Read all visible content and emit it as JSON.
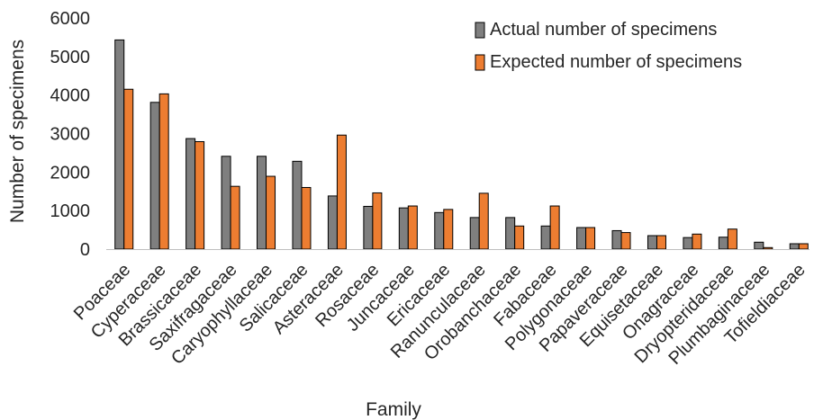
{
  "chart_data": {
    "type": "bar",
    "title": "",
    "xlabel": "Family",
    "ylabel": "Number of specimens",
    "ylim": [
      0,
      6000
    ],
    "yticks": [
      0,
      1000,
      2000,
      3000,
      4000,
      5000,
      6000
    ],
    "grid": false,
    "legend_position": "top-right",
    "categories": [
      "Poaceae",
      "Cyperaceae",
      "Brassicaceae",
      "Saxifragaceae",
      "Caryophyllaceae",
      "Salicaceae",
      "Asteraceae",
      "Rosaceae",
      "Juncaceae",
      "Ericaceae",
      "Ranunculaceae",
      "Orobanchaceae",
      "Fabaceae",
      "Polygonaceae",
      "Papaveraceae",
      "Equisetaceae",
      "Onagraceae",
      "Dryopteridaceae",
      "Plumbaginaceae",
      "Tofieldiaceae"
    ],
    "series": [
      {
        "name": "Actual number of specimens",
        "color": "#7f7f7f",
        "values": [
          5430,
          3810,
          2870,
          2410,
          2410,
          2280,
          1380,
          1110,
          1070,
          950,
          820,
          820,
          600,
          560,
          480,
          350,
          300,
          310,
          180,
          140
        ]
      },
      {
        "name": "Expected number of specimens",
        "color": "#ed7d31",
        "values": [
          4150,
          4030,
          2790,
          1630,
          1890,
          1600,
          2960,
          1460,
          1120,
          1030,
          1450,
          600,
          1120,
          560,
          430,
          350,
          390,
          520,
          40,
          140
        ]
      }
    ]
  }
}
